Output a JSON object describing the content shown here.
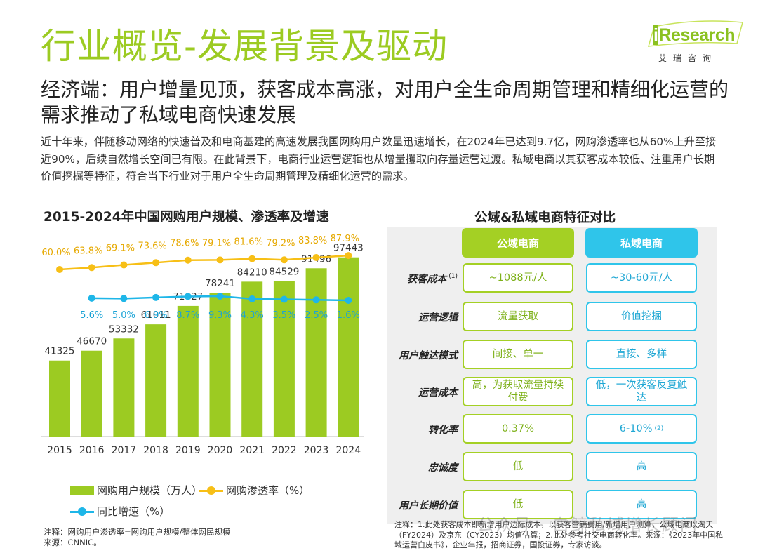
{
  "page": {
    "title": "行业概览-发展背景及驱动",
    "subtitle": "经济端：用户增量见顶，获客成本高涨，对用户全生命周期管理和精细化运营的需求推动了私域电商快速发展",
    "description": "近十年来，伴随移动网络的快速普及和电商基建的高速发展我国网购用户数量迅速增长，在2024年已达到9.7亿，网购渗透率也从60%上升至接近90%，后续自然增长空间已有限。在此背景下，电商行业运营逻辑也从增量攫取向存量运营过渡。私域电商以其获客成本较低、注重用户长期价值挖掘等特征，符合当下行业对于用户全生命周期管理及精细化运营的需求。"
  },
  "logo": {
    "brand_i": "i",
    "brand_rest": "Research",
    "tagline": "艾瑞咨询"
  },
  "chart_data": {
    "type": "bar",
    "title": "2015-2024年中国网购用户规模、渗透率及增速",
    "categories": [
      "2015",
      "2016",
      "2017",
      "2018",
      "2019",
      "2020",
      "2021",
      "2022",
      "2023",
      "2024"
    ],
    "series": [
      {
        "name": "网购用户规模（万人）",
        "type": "bar",
        "color": "#9ccb22",
        "values": [
          41325,
          46670,
          53332,
          61011,
          71027,
          78241,
          84210,
          84529,
          91496,
          97443
        ],
        "labels": [
          "41325",
          "46670",
          "53332",
          "61011",
          "71027",
          "78241",
          "84210",
          "84529",
          "91496",
          "97443"
        ]
      },
      {
        "name": "网购渗透率（%）",
        "type": "line",
        "color": "#f7bf16",
        "values": [
          60.0,
          63.8,
          69.1,
          73.6,
          78.6,
          79.1,
          81.6,
          79.2,
          83.8,
          87.9
        ],
        "labels": [
          "60.0%",
          "63.8%",
          "69.1%",
          "73.6%",
          "78.6%",
          "79.1%",
          "81.6%",
          "79.2%",
          "83.8%",
          "87.9%"
        ]
      },
      {
        "name": "同比增速（%）",
        "type": "line",
        "color": "#1eb6e8",
        "values": [
          null,
          5.6,
          5.0,
          6.9,
          8.7,
          9.3,
          4.3,
          3.5,
          2.5,
          1.6
        ],
        "labels": [
          "",
          "5.6%",
          "5.0%",
          "6.9%",
          "8.7%",
          "9.3%",
          "4.3%",
          "3.5%",
          "2.5%",
          "1.6%"
        ]
      }
    ],
    "ylim": [
      0,
      100000
    ],
    "grid": false,
    "legend_position": "bottom"
  },
  "chart_note": [
    "注释：网购用户渗透率=网购用户规模/整体网民规模",
    "来源：CNNIC。"
  ],
  "comparison": {
    "title": "公域&私域电商特征对比",
    "col_public": "公域电商",
    "col_private": "私域电商",
    "rows": [
      {
        "label": "获客成本",
        "label_sup": "(1)",
        "public": "~1088元/人",
        "private": "~30-60元/人",
        "private_sup": ""
      },
      {
        "label": "运营逻辑",
        "label_sup": "",
        "public": "流量获取",
        "private": "价值挖掘",
        "private_sup": ""
      },
      {
        "label": "用户触达模式",
        "label_sup": "",
        "public": "间接、单一",
        "private": "直接、多样",
        "private_sup": ""
      },
      {
        "label": "运营成本",
        "label_sup": "",
        "public": "高，为获取流量持续付费",
        "private": "低，一次获客反复触达",
        "private_sup": ""
      },
      {
        "label": "转化率",
        "label_sup": "",
        "public": "0.37%",
        "private": "6-10%",
        "private_sup": "(2)"
      },
      {
        "label": "忠诚度",
        "label_sup": "",
        "public": "低",
        "private": "高",
        "private_sup": ""
      },
      {
        "label": "用户长期价值",
        "label_sup": "",
        "public": "低",
        "private": "高",
        "private_sup": ""
      }
    ],
    "note": "注释：1.此处获客成本即新增用户边际成本，以获客营销费用/新增用户测算，公域电商以淘天（FY2024）及京东（CY2023）均值估算；2.此处参考社交电商转化率。来源：《2023年中国私域运营白皮书》，企业年报，招商证券，国投证券，专家访谈。"
  },
  "watermark": "公众号 · 白鲸私域增长顾问"
}
